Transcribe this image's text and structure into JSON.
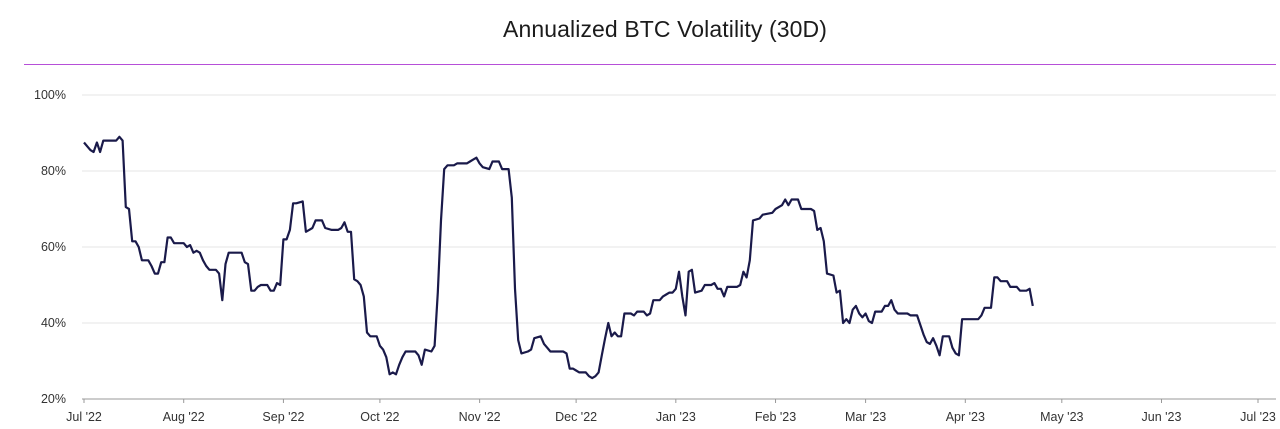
{
  "colors": {
    "line": "#1a1a4a",
    "title_rule": "#b64fd8",
    "grid": "#e6e6e6",
    "axis": "#999999"
  },
  "chart_data": {
    "type": "line",
    "title": "Annualized BTC Volatility (30D)",
    "xlabel": "",
    "ylabel": "",
    "ylim": [
      20,
      100
    ],
    "grid": true,
    "y_ticks": [
      {
        "value": 100,
        "label": "100%"
      },
      {
        "value": 80,
        "label": "80%"
      },
      {
        "value": 60,
        "label": "60%"
      },
      {
        "value": 40,
        "label": "40%"
      },
      {
        "value": 20,
        "label": "20%"
      }
    ],
    "x_ticks": [
      {
        "date": "2022-07-01",
        "label": "Jul '22"
      },
      {
        "date": "2022-08-01",
        "label": "Aug '22"
      },
      {
        "date": "2022-09-01",
        "label": "Sep '22"
      },
      {
        "date": "2022-10-01",
        "label": "Oct '22"
      },
      {
        "date": "2022-11-01",
        "label": "Nov '22"
      },
      {
        "date": "2022-12-01",
        "label": "Dec '22"
      },
      {
        "date": "2023-01-01",
        "label": "Jan '23"
      },
      {
        "date": "2023-02-01",
        "label": "Feb '23"
      },
      {
        "date": "2023-03-01",
        "label": "Mar '23"
      },
      {
        "date": "2023-04-01",
        "label": "Apr '23"
      },
      {
        "date": "2023-05-01",
        "label": "May '23"
      },
      {
        "date": "2023-06-01",
        "label": "Jun '23"
      },
      {
        "date": "2023-07-01",
        "label": "Jul '23"
      }
    ],
    "series": [
      {
        "values": [
          [
            "2022-07-01",
            87.5
          ],
          [
            "2022-07-03",
            85.5
          ],
          [
            "2022-07-04",
            85.0
          ],
          [
            "2022-07-05",
            87.5
          ],
          [
            "2022-07-06",
            85.0
          ],
          [
            "2022-07-07",
            88.0
          ],
          [
            "2022-07-09",
            88.0
          ],
          [
            "2022-07-11",
            88.0
          ],
          [
            "2022-07-12",
            89.0
          ],
          [
            "2022-07-13",
            88.0
          ],
          [
            "2022-07-14",
            70.5
          ],
          [
            "2022-07-15",
            70.0
          ],
          [
            "2022-07-16",
            61.5
          ],
          [
            "2022-07-17",
            61.5
          ],
          [
            "2022-07-18",
            60.0
          ],
          [
            "2022-07-19",
            56.5
          ],
          [
            "2022-07-21",
            56.5
          ],
          [
            "2022-07-22",
            55.0
          ],
          [
            "2022-07-23",
            53.0
          ],
          [
            "2022-07-24",
            53.0
          ],
          [
            "2022-07-25",
            56.0
          ],
          [
            "2022-07-26",
            56.0
          ],
          [
            "2022-07-27",
            62.5
          ],
          [
            "2022-07-28",
            62.5
          ],
          [
            "2022-07-29",
            61.0
          ],
          [
            "2022-07-31",
            61.0
          ],
          [
            "2022-08-01",
            61.0
          ],
          [
            "2022-08-02",
            60.0
          ],
          [
            "2022-08-03",
            60.5
          ],
          [
            "2022-08-04",
            58.5
          ],
          [
            "2022-08-05",
            59.0
          ],
          [
            "2022-08-06",
            58.5
          ],
          [
            "2022-08-07",
            56.5
          ],
          [
            "2022-08-08",
            55.0
          ],
          [
            "2022-08-09",
            54.0
          ],
          [
            "2022-08-11",
            54.0
          ],
          [
            "2022-08-12",
            53.0
          ],
          [
            "2022-08-13",
            46.0
          ],
          [
            "2022-08-14",
            55.5
          ],
          [
            "2022-08-15",
            58.5
          ],
          [
            "2022-08-19",
            58.5
          ],
          [
            "2022-08-20",
            56.0
          ],
          [
            "2022-08-21",
            55.5
          ],
          [
            "2022-08-22",
            48.5
          ],
          [
            "2022-08-23",
            48.5
          ],
          [
            "2022-08-24",
            49.5
          ],
          [
            "2022-08-25",
            50.0
          ],
          [
            "2022-08-27",
            50.0
          ],
          [
            "2022-08-28",
            48.5
          ],
          [
            "2022-08-29",
            48.5
          ],
          [
            "2022-08-30",
            50.5
          ],
          [
            "2022-08-31",
            50.0
          ],
          [
            "2022-09-01",
            62.0
          ],
          [
            "2022-09-02",
            62.0
          ],
          [
            "2022-09-03",
            64.5
          ],
          [
            "2022-09-04",
            71.5
          ],
          [
            "2022-09-05",
            71.5
          ],
          [
            "2022-09-07",
            72.0
          ],
          [
            "2022-09-08",
            64.0
          ],
          [
            "2022-09-09",
            64.5
          ],
          [
            "2022-09-10",
            65.0
          ],
          [
            "2022-09-11",
            67.0
          ],
          [
            "2022-09-13",
            67.0
          ],
          [
            "2022-09-14",
            65.0
          ],
          [
            "2022-09-16",
            64.5
          ],
          [
            "2022-09-18",
            64.5
          ],
          [
            "2022-09-19",
            65.0
          ],
          [
            "2022-09-20",
            66.5
          ],
          [
            "2022-09-21",
            64.0
          ],
          [
            "2022-09-22",
            64.0
          ],
          [
            "2022-09-23",
            51.5
          ],
          [
            "2022-09-24",
            51.0
          ],
          [
            "2022-09-25",
            50.0
          ],
          [
            "2022-09-26",
            47.0
          ],
          [
            "2022-09-27",
            37.5
          ],
          [
            "2022-09-28",
            36.5
          ],
          [
            "2022-09-30",
            36.5
          ],
          [
            "2022-10-01",
            34.0
          ],
          [
            "2022-10-02",
            33.0
          ],
          [
            "2022-10-03",
            31.0
          ],
          [
            "2022-10-04",
            26.5
          ],
          [
            "2022-10-05",
            27.0
          ],
          [
            "2022-10-06",
            26.5
          ],
          [
            "2022-10-07",
            29.0
          ],
          [
            "2022-10-08",
            31.0
          ],
          [
            "2022-10-09",
            32.5
          ],
          [
            "2022-10-12",
            32.5
          ],
          [
            "2022-10-13",
            31.5
          ],
          [
            "2022-10-14",
            29.0
          ],
          [
            "2022-10-15",
            33.0
          ],
          [
            "2022-10-17",
            32.5
          ],
          [
            "2022-10-18",
            34.0
          ],
          [
            "2022-10-19",
            48.0
          ],
          [
            "2022-10-20",
            67.0
          ],
          [
            "2022-10-21",
            80.5
          ],
          [
            "2022-10-22",
            81.5
          ],
          [
            "2022-10-24",
            81.5
          ],
          [
            "2022-10-25",
            82.0
          ],
          [
            "2022-10-28",
            82.0
          ],
          [
            "2022-10-29",
            82.5
          ],
          [
            "2022-10-30",
            83.0
          ],
          [
            "2022-10-31",
            83.5
          ],
          [
            "2022-11-01",
            82.0
          ],
          [
            "2022-11-02",
            81.0
          ],
          [
            "2022-11-04",
            80.5
          ],
          [
            "2022-11-05",
            82.5
          ],
          [
            "2022-11-07",
            82.5
          ],
          [
            "2022-11-08",
            80.5
          ],
          [
            "2022-11-10",
            80.5
          ],
          [
            "2022-11-11",
            73.0
          ],
          [
            "2022-11-12",
            49.0
          ],
          [
            "2022-11-13",
            35.5
          ],
          [
            "2022-11-14",
            32.0
          ],
          [
            "2022-11-16",
            32.5
          ],
          [
            "2022-11-17",
            33.0
          ],
          [
            "2022-11-18",
            36.0
          ],
          [
            "2022-11-20",
            36.5
          ],
          [
            "2022-11-21",
            34.5
          ],
          [
            "2022-11-22",
            33.5
          ],
          [
            "2022-11-23",
            32.5
          ],
          [
            "2022-11-27",
            32.5
          ],
          [
            "2022-11-28",
            32.0
          ],
          [
            "2022-11-29",
            28.0
          ],
          [
            "2022-11-30",
            28.0
          ],
          [
            "2022-12-01",
            27.5
          ],
          [
            "2022-12-02",
            27.0
          ],
          [
            "2022-12-04",
            27.0
          ],
          [
            "2022-12-05",
            26.0
          ],
          [
            "2022-12-06",
            25.5
          ],
          [
            "2022-12-07",
            26.0
          ],
          [
            "2022-12-08",
            27.0
          ],
          [
            "2022-12-09",
            31.5
          ],
          [
            "2022-12-10",
            36.0
          ],
          [
            "2022-12-11",
            40.0
          ],
          [
            "2022-12-12",
            36.5
          ],
          [
            "2022-12-13",
            37.5
          ],
          [
            "2022-12-14",
            36.5
          ],
          [
            "2022-12-15",
            36.5
          ],
          [
            "2022-12-16",
            42.5
          ],
          [
            "2022-12-18",
            42.5
          ],
          [
            "2022-12-19",
            42.0
          ],
          [
            "2022-12-20",
            43.0
          ],
          [
            "2022-12-22",
            43.0
          ],
          [
            "2022-12-23",
            42.0
          ],
          [
            "2022-12-24",
            42.5
          ],
          [
            "2022-12-25",
            46.0
          ],
          [
            "2022-12-27",
            46.0
          ],
          [
            "2022-12-28",
            47.0
          ],
          [
            "2022-12-29",
            47.5
          ],
          [
            "2022-12-30",
            48.0
          ],
          [
            "2022-12-31",
            48.0
          ],
          [
            "2023-01-01",
            49.0
          ],
          [
            "2023-01-02",
            53.5
          ],
          [
            "2023-01-03",
            47.0
          ],
          [
            "2023-01-04",
            42.0
          ],
          [
            "2023-01-05",
            53.5
          ],
          [
            "2023-01-06",
            54.0
          ],
          [
            "2023-01-07",
            48.0
          ],
          [
            "2023-01-09",
            48.5
          ],
          [
            "2023-01-10",
            50.0
          ],
          [
            "2023-01-12",
            50.0
          ],
          [
            "2023-01-13",
            50.5
          ],
          [
            "2023-01-14",
            49.0
          ],
          [
            "2023-01-15",
            49.0
          ],
          [
            "2023-01-16",
            47.0
          ],
          [
            "2023-01-17",
            49.5
          ],
          [
            "2023-01-20",
            49.5
          ],
          [
            "2023-01-21",
            50.0
          ],
          [
            "2023-01-22",
            53.5
          ],
          [
            "2023-01-23",
            52.0
          ],
          [
            "2023-01-24",
            56.5
          ],
          [
            "2023-01-25",
            67.0
          ],
          [
            "2023-01-27",
            67.5
          ],
          [
            "2023-01-28",
            68.5
          ],
          [
            "2023-01-31",
            69.0
          ],
          [
            "2023-02-01",
            70.0
          ],
          [
            "2023-02-03",
            71.0
          ],
          [
            "2023-02-04",
            72.5
          ],
          [
            "2023-02-05",
            71.0
          ],
          [
            "2023-02-06",
            72.5
          ],
          [
            "2023-02-08",
            72.5
          ],
          [
            "2023-02-09",
            70.0
          ],
          [
            "2023-02-12",
            70.0
          ],
          [
            "2023-02-13",
            69.5
          ],
          [
            "2023-02-14",
            64.5
          ],
          [
            "2023-02-15",
            65.0
          ],
          [
            "2023-02-16",
            61.5
          ],
          [
            "2023-02-17",
            53.0
          ],
          [
            "2023-02-19",
            52.5
          ],
          [
            "2023-02-20",
            48.0
          ],
          [
            "2023-02-21",
            48.5
          ],
          [
            "2023-02-22",
            40.0
          ],
          [
            "2023-02-23",
            41.0
          ],
          [
            "2023-02-24",
            40.0
          ],
          [
            "2023-02-25",
            43.5
          ],
          [
            "2023-02-26",
            44.5
          ],
          [
            "2023-02-27",
            42.5
          ],
          [
            "2023-02-28",
            41.5
          ],
          [
            "2023-03-01",
            42.5
          ],
          [
            "2023-03-02",
            40.5
          ],
          [
            "2023-03-03",
            40.0
          ],
          [
            "2023-03-04",
            43.0
          ],
          [
            "2023-03-06",
            43.0
          ],
          [
            "2023-03-07",
            44.5
          ],
          [
            "2023-03-08",
            44.5
          ],
          [
            "2023-03-09",
            46.0
          ],
          [
            "2023-03-10",
            43.5
          ],
          [
            "2023-03-11",
            42.5
          ],
          [
            "2023-03-14",
            42.5
          ],
          [
            "2023-03-15",
            42.0
          ],
          [
            "2023-03-17",
            42.0
          ],
          [
            "2023-03-18",
            39.5
          ],
          [
            "2023-03-19",
            37.0
          ],
          [
            "2023-03-20",
            35.0
          ],
          [
            "2023-03-21",
            34.5
          ],
          [
            "2023-03-22",
            36.0
          ],
          [
            "2023-03-23",
            34.0
          ],
          [
            "2023-03-24",
            31.5
          ],
          [
            "2023-03-25",
            36.5
          ],
          [
            "2023-03-27",
            36.5
          ],
          [
            "2023-03-28",
            33.5
          ],
          [
            "2023-03-29",
            32.0
          ],
          [
            "2023-03-30",
            31.5
          ],
          [
            "2023-03-31",
            41.0
          ],
          [
            "2023-04-02",
            41.0
          ],
          [
            "2023-04-05",
            41.0
          ],
          [
            "2023-04-06",
            42.0
          ],
          [
            "2023-04-07",
            44.0
          ],
          [
            "2023-04-09",
            44.0
          ],
          [
            "2023-04-10",
            52.0
          ],
          [
            "2023-04-11",
            52.0
          ],
          [
            "2023-04-12",
            51.0
          ],
          [
            "2023-04-14",
            51.0
          ],
          [
            "2023-04-15",
            49.5
          ],
          [
            "2023-04-17",
            49.5
          ],
          [
            "2023-04-18",
            48.5
          ],
          [
            "2023-04-20",
            48.5
          ],
          [
            "2023-04-21",
            49.0
          ],
          [
            "2023-04-22",
            44.5
          ]
        ]
      }
    ]
  }
}
